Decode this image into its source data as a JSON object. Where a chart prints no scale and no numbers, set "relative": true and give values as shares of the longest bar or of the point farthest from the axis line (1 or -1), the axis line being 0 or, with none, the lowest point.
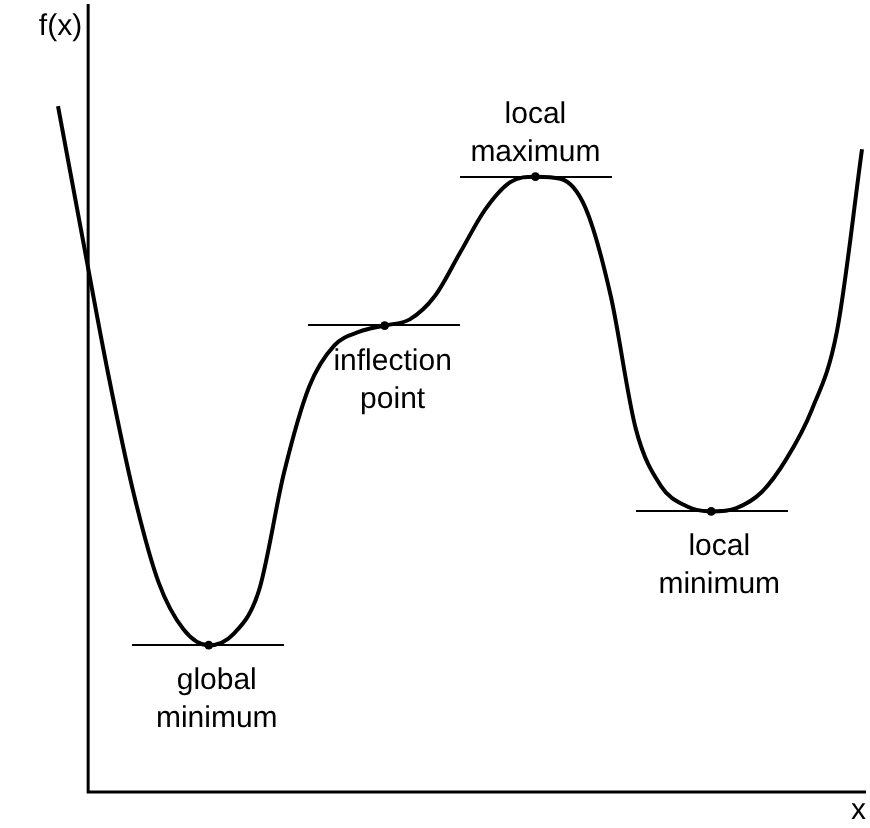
{
  "chart_data": {
    "type": "line",
    "xlabel": "x",
    "ylabel": "f(x)",
    "relative": true,
    "marker": "none",
    "color": "#000000",
    "categories": [
      null,
      null,
      null,
      null,
      null,
      null,
      null,
      null,
      null,
      null,
      null,
      null,
      null,
      null,
      null,
      null,
      null,
      null,
      null,
      null,
      null,
      null,
      null,
      null,
      null,
      null,
      null,
      null,
      null,
      null,
      null,
      null,
      null
    ],
    "values": [
      1.0,
      0.803,
      0.609,
      0.437,
      0.306,
      0.237,
      0.214,
      0.231,
      0.294,
      0.466,
      0.591,
      0.651,
      0.671,
      0.68,
      0.689,
      0.723,
      0.786,
      0.849,
      0.889,
      0.897,
      0.894,
      0.851,
      0.723,
      0.529,
      0.446,
      0.417,
      0.409,
      0.414,
      0.437,
      0.486,
      0.557,
      0.671,
      0.937
    ],
    "annotations": [
      "global minimum",
      "inflection point",
      "local maximum",
      "local minimum"
    ]
  }
}
